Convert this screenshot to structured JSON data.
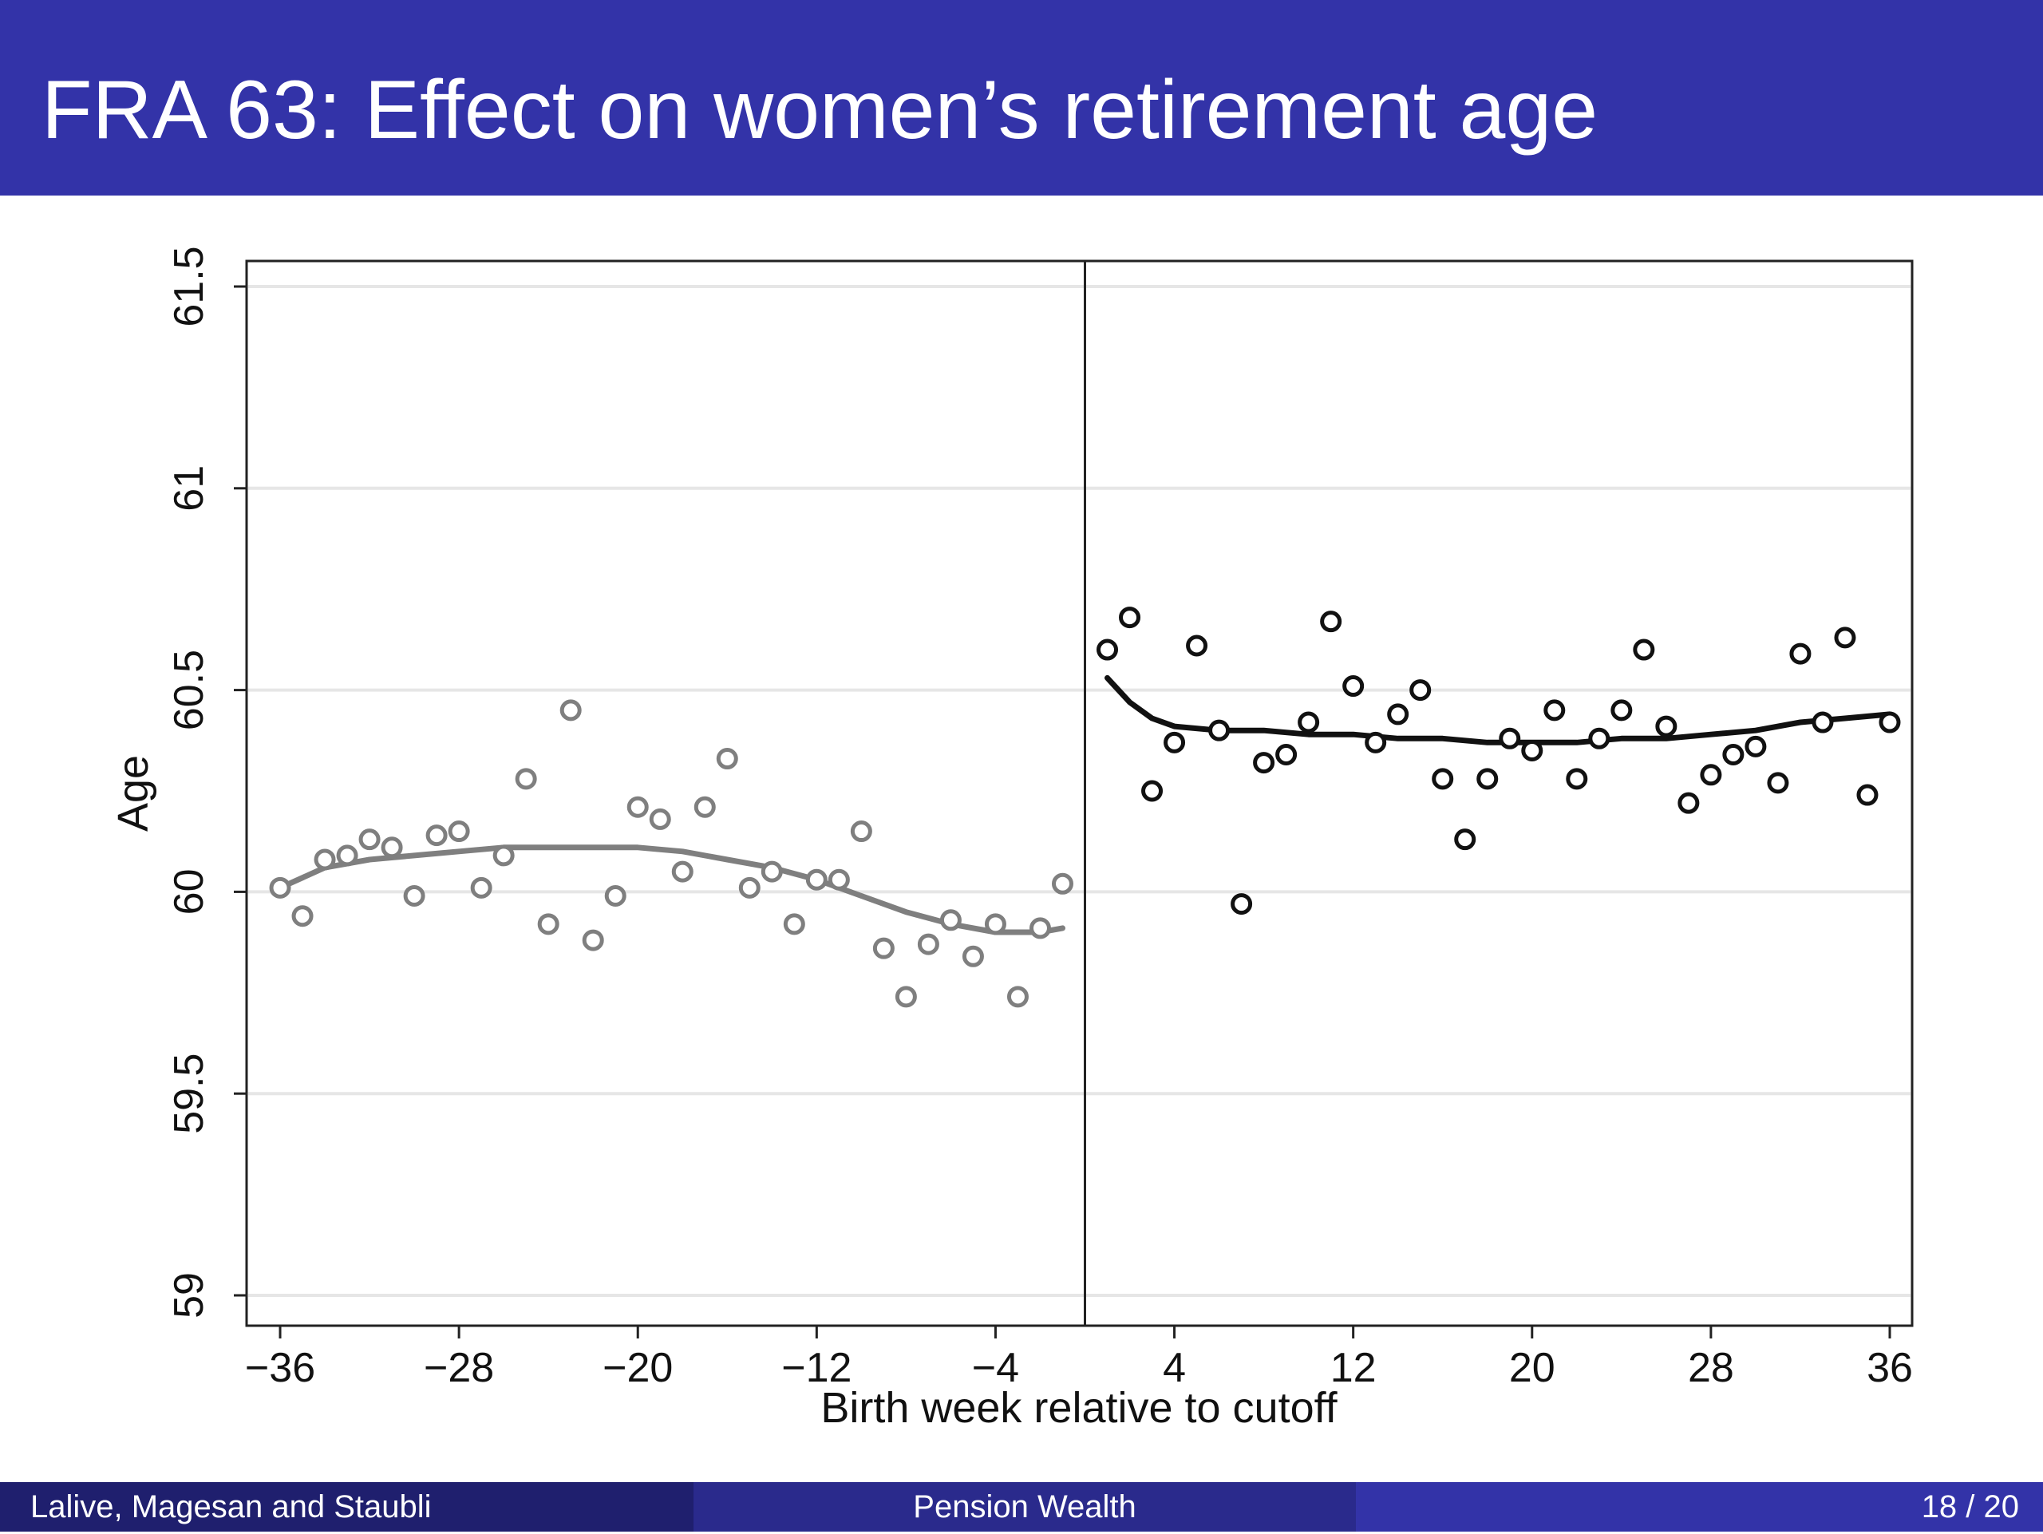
{
  "slide": {
    "title": "FRA 63: Effect on women’s retirement age"
  },
  "footer": {
    "authors": "Lalive, Magesan and Staubli",
    "topic": "Pension Wealth",
    "page": "18 / 20"
  },
  "colors": {
    "title_bar": "#3333a8",
    "footer_left": "#1f1f6e",
    "footer_mid": "#2a2a8c",
    "footer_right": "#3333a8",
    "left_series": "#7f7f7f",
    "right_series": "#111111"
  },
  "chart_data": {
    "type": "scatter",
    "title": "",
    "xlabel": "Birth week relative to cutoff",
    "ylabel": "Age",
    "xlim": [
      -37.5,
      37
    ],
    "ylim": [
      59,
      61.5
    ],
    "xticks": [
      -36,
      -28,
      -20,
      -12,
      -4,
      4,
      12,
      20,
      28,
      36
    ],
    "xtick_labels": [
      "−36",
      "−28",
      "−20",
      "−12",
      "−4",
      "4",
      "12",
      "20",
      "28",
      "36"
    ],
    "yticks": [
      59,
      59.5,
      60,
      60.5,
      61,
      61.5
    ],
    "ytick_labels": [
      "59",
      "59.5",
      "60",
      "60.5",
      "61",
      "61.5"
    ],
    "grid": true,
    "cutoff_line_x": 0,
    "series": [
      {
        "side": "left",
        "color": "#7f7f7f",
        "points": [
          [
            -36,
            60.01
          ],
          [
            -35,
            59.94
          ],
          [
            -34,
            60.08
          ],
          [
            -33,
            60.09
          ],
          [
            -32,
            60.13
          ],
          [
            -31,
            60.11
          ],
          [
            -30,
            59.99
          ],
          [
            -29,
            60.14
          ],
          [
            -28,
            60.15
          ],
          [
            -27,
            60.01
          ],
          [
            -26,
            60.09
          ],
          [
            -25,
            60.28
          ],
          [
            -24,
            59.92
          ],
          [
            -23,
            60.45
          ],
          [
            -22,
            59.88
          ],
          [
            -21,
            59.99
          ],
          [
            -20,
            60.21
          ],
          [
            -19,
            60.18
          ],
          [
            -18,
            60.05
          ],
          [
            -17,
            60.21
          ],
          [
            -16,
            60.33
          ],
          [
            -15,
            60.01
          ],
          [
            -14,
            60.05
          ],
          [
            -13,
            59.92
          ],
          [
            -12,
            60.03
          ],
          [
            -11,
            60.03
          ],
          [
            -10,
            60.15
          ],
          [
            -9,
            59.86
          ],
          [
            -8,
            59.74
          ],
          [
            -7,
            59.87
          ],
          [
            -6,
            59.93
          ],
          [
            -5,
            59.84
          ],
          [
            -4,
            59.92
          ],
          [
            -3,
            59.74
          ],
          [
            -2,
            59.91
          ],
          [
            -1,
            60.02
          ]
        ],
        "fit": [
          [
            -36,
            60.01
          ],
          [
            -34,
            60.06
          ],
          [
            -32,
            60.08
          ],
          [
            -30,
            60.09
          ],
          [
            -28,
            60.1
          ],
          [
            -26,
            60.11
          ],
          [
            -24,
            60.11
          ],
          [
            -22,
            60.11
          ],
          [
            -20,
            60.11
          ],
          [
            -18,
            60.1
          ],
          [
            -16,
            60.08
          ],
          [
            -14,
            60.06
          ],
          [
            -12,
            60.03
          ],
          [
            -10,
            59.99
          ],
          [
            -8,
            59.95
          ],
          [
            -6,
            59.92
          ],
          [
            -4,
            59.9
          ],
          [
            -2,
            59.9
          ],
          [
            -1,
            59.91
          ]
        ]
      },
      {
        "side": "right",
        "color": "#111111",
        "points": [
          [
            1,
            60.6
          ],
          [
            2,
            60.68
          ],
          [
            3,
            60.25
          ],
          [
            4,
            60.37
          ],
          [
            5,
            60.61
          ],
          [
            6,
            60.4
          ],
          [
            7,
            59.97
          ],
          [
            8,
            60.32
          ],
          [
            9,
            60.34
          ],
          [
            10,
            60.42
          ],
          [
            11,
            60.67
          ],
          [
            12,
            60.51
          ],
          [
            13,
            60.37
          ],
          [
            14,
            60.44
          ],
          [
            15,
            60.5
          ],
          [
            16,
            60.28
          ],
          [
            17,
            60.13
          ],
          [
            18,
            60.28
          ],
          [
            19,
            60.38
          ],
          [
            20,
            60.35
          ],
          [
            21,
            60.45
          ],
          [
            22,
            60.28
          ],
          [
            23,
            60.38
          ],
          [
            24,
            60.45
          ],
          [
            25,
            60.6
          ],
          [
            26,
            60.41
          ],
          [
            27,
            60.22
          ],
          [
            28,
            60.29
          ],
          [
            29,
            60.34
          ],
          [
            30,
            60.36
          ],
          [
            31,
            60.27
          ],
          [
            32,
            60.59
          ],
          [
            33,
            60.42
          ],
          [
            34,
            60.63
          ],
          [
            35,
            60.24
          ],
          [
            36,
            60.42
          ]
        ],
        "fit": [
          [
            1,
            60.53
          ],
          [
            2,
            60.47
          ],
          [
            3,
            60.43
          ],
          [
            4,
            60.41
          ],
          [
            6,
            60.4
          ],
          [
            8,
            60.4
          ],
          [
            10,
            60.39
          ],
          [
            12,
            60.39
          ],
          [
            14,
            60.38
          ],
          [
            16,
            60.38
          ],
          [
            18,
            60.37
          ],
          [
            20,
            60.37
          ],
          [
            22,
            60.37
          ],
          [
            24,
            60.38
          ],
          [
            26,
            60.38
          ],
          [
            28,
            60.39
          ],
          [
            30,
            60.4
          ],
          [
            32,
            60.42
          ],
          [
            34,
            60.43
          ],
          [
            36,
            60.44
          ]
        ]
      }
    ]
  }
}
